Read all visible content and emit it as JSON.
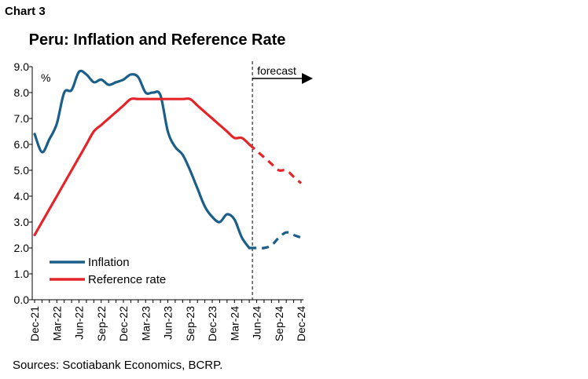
{
  "header": {
    "chart_label": "Chart 3"
  },
  "footer": {
    "source": "Sources: Scotiabank Economics, BCRP."
  },
  "colors": {
    "inflation": "#1a5e8a",
    "reference_rate": "#e3242b",
    "axis": "#000000"
  },
  "chart_data": {
    "type": "line",
    "title": "Peru: Inflation and Reference Rate",
    "ylabel": "%",
    "ylim": [
      0,
      9
    ],
    "yticks": [
      "0.0",
      "1.0",
      "2.0",
      "3.0",
      "4.0",
      "5.0",
      "6.0",
      "7.0",
      "8.0",
      "9.0"
    ],
    "x_tick_labels": [
      "Dec-21",
      "Mar-22",
      "Jun-22",
      "Sep-22",
      "Dec-22",
      "Mar-23",
      "Jun-23",
      "Sep-23",
      "Dec-23",
      "Mar-24",
      "Jun-24",
      "Sep-24",
      "Dec-24"
    ],
    "months": [
      "Dec-21",
      "Jan-22",
      "Feb-22",
      "Mar-22",
      "Apr-22",
      "May-22",
      "Jun-22",
      "Jul-22",
      "Aug-22",
      "Sep-22",
      "Oct-22",
      "Nov-22",
      "Dec-22",
      "Jan-23",
      "Feb-23",
      "Mar-23",
      "Apr-23",
      "May-23",
      "Jun-23",
      "Jul-23",
      "Aug-23",
      "Sep-23",
      "Oct-23",
      "Nov-23",
      "Dec-23",
      "Jan-24",
      "Feb-24",
      "Mar-24",
      "Apr-24",
      "May-24",
      "Jun-24",
      "Jul-24",
      "Aug-24",
      "Sep-24",
      "Oct-24",
      "Nov-24",
      "Dec-24"
    ],
    "forecast_start": "May-24",
    "forecast_label": "forecast",
    "legend": {
      "position": "bottom-left"
    },
    "grid": false,
    "series": [
      {
        "name": "Inflation",
        "color": "#1a5e8a",
        "values": [
          6.4,
          5.7,
          6.2,
          6.8,
          8.0,
          8.1,
          8.8,
          8.7,
          8.4,
          8.5,
          8.3,
          8.4,
          8.5,
          8.7,
          8.6,
          8.0,
          8.0,
          7.9,
          6.5,
          5.9,
          5.6,
          5.0,
          4.3,
          3.6,
          3.2,
          3.0,
          3.3,
          3.1,
          2.4,
          2.0,
          2.0,
          2.0,
          2.1,
          2.4,
          2.6,
          2.5,
          2.4
        ],
        "forecast_values": [
          null,
          null,
          null,
          null,
          null,
          null,
          null,
          null,
          null,
          null,
          null,
          null,
          null,
          null,
          null,
          null,
          null,
          null,
          null,
          null,
          null,
          null,
          null,
          null,
          null,
          null,
          null,
          null,
          null,
          2.0,
          2.0,
          2.0,
          2.1,
          2.4,
          2.6,
          2.5,
          2.4
        ]
      },
      {
        "name": "Reference rate",
        "color": "#e3242b",
        "values": [
          2.5,
          3.0,
          3.5,
          4.0,
          4.5,
          5.0,
          5.5,
          6.0,
          6.5,
          6.75,
          7.0,
          7.25,
          7.5,
          7.75,
          7.75,
          7.75,
          7.75,
          7.75,
          7.75,
          7.75,
          7.75,
          7.75,
          7.5,
          7.25,
          7.0,
          6.75,
          6.5,
          6.25,
          6.25,
          6.0,
          5.75,
          5.5,
          5.25,
          5.0,
          5.0,
          4.75,
          4.5
        ]
      }
    ]
  }
}
